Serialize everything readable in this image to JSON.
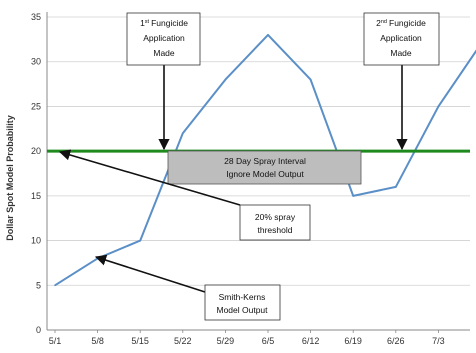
{
  "chart_data": {
    "type": "line",
    "title": "",
    "xlabel": "",
    "ylabel": "Dollar Spot Model Probability",
    "ylim": [
      0,
      35
    ],
    "yticks": [
      0,
      5,
      10,
      15,
      20,
      25,
      30,
      35
    ],
    "x_tick_labels": [
      "5/1",
      "5/8",
      "5/15",
      "5/22",
      "5/29",
      "6/5",
      "6/12",
      "6/19",
      "6/26",
      "7/3"
    ],
    "grid": true,
    "series": [
      {
        "name": "",
        "color": "#5b8fc7",
        "points": [
          {
            "x": "5/1",
            "y": 5
          },
          {
            "x": "5/8",
            "y": 8
          },
          {
            "x": "5/15",
            "y": 10
          },
          {
            "x": "5/22",
            "y": 22
          },
          {
            "x": "5/29",
            "y": 28
          },
          {
            "x": "6/5",
            "y": 33
          },
          {
            "x": "6/12",
            "y": 28
          },
          {
            "x": "6/19",
            "y": 15
          },
          {
            "x": "6/26",
            "y": 16
          },
          {
            "x": "7/3",
            "y": 25
          },
          {
            "x": "7/10",
            "y": 32
          }
        ]
      }
    ],
    "threshold": {
      "value": 20,
      "color": "#1e8a1e"
    },
    "spray_interval": {
      "from": "5/22",
      "to": "6/19",
      "lines": [
        "28 Day Spray Interval",
        "Ignore Model Output"
      ],
      "fill": "#bdbdbd"
    },
    "annotations": [
      {
        "id": "first-fungicide",
        "sup": "st",
        "lines": [
          "1",
          "Fungicide",
          "Application",
          "Made"
        ]
      },
      {
        "id": "second-fungicide",
        "sup": "nd",
        "lines": [
          "2",
          "Fungicide",
          "Application",
          "Made"
        ]
      },
      {
        "id": "spray-threshold",
        "lines": [
          "20% spray",
          "threshold"
        ]
      },
      {
        "id": "model-output",
        "lines": [
          "Smith-Kerns",
          "Model Output"
        ]
      }
    ]
  }
}
